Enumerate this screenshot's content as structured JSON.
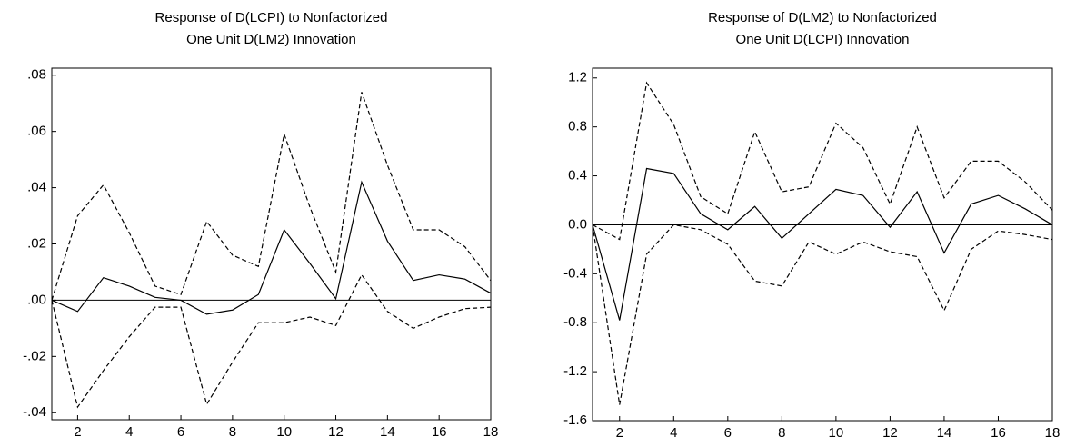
{
  "chart_data": [
    {
      "type": "line",
      "title": [
        "Response of D(LCPI) to Nonfactorized",
        "One Unit D(LM2) Innovation"
      ],
      "x": [
        1,
        2,
        3,
        4,
        5,
        6,
        7,
        8,
        9,
        10,
        11,
        12,
        13,
        14,
        15,
        16,
        17,
        18
      ],
      "xlim": [
        1,
        18
      ],
      "xticks": [
        2,
        4,
        6,
        8,
        10,
        12,
        14,
        16,
        18
      ],
      "ylim": [
        -0.0425,
        0.0825
      ],
      "yticks": [
        {
          "value": 0.08,
          "label": ".08"
        },
        {
          "value": 0.06,
          "label": ".06"
        },
        {
          "value": 0.04,
          "label": ".04"
        },
        {
          "value": 0.02,
          "label": ".02"
        },
        {
          "value": 0,
          "label": ".00"
        },
        {
          "value": -0.02,
          "label": "-.02"
        },
        {
          "value": -0.04,
          "label": "-.04"
        }
      ],
      "zero_line": true,
      "series": [
        {
          "color": "#000000",
          "dashed": false,
          "values": [
            0,
            -0.004,
            0.008,
            0.005,
            0.001,
            0.0,
            -0.005,
            -0.0035,
            0.002,
            0.025,
            0.013,
            0.0005,
            0.042,
            0.021,
            0.007,
            0.009,
            0.0075,
            0.0025
          ]
        },
        {
          "color": "#000000",
          "dashed": true,
          "values": [
            0,
            0.03,
            0.041,
            0.024,
            0.005,
            0.002,
            0.028,
            0.016,
            0.012,
            0.059,
            0.033,
            0.01,
            0.074,
            0.048,
            0.025,
            0.025,
            0.019,
            0.007
          ]
        },
        {
          "color": "#000000",
          "dashed": true,
          "values": [
            0,
            -0.038,
            -0.025,
            -0.013,
            -0.0025,
            -0.0025,
            -0.037,
            -0.022,
            -0.008,
            -0.008,
            -0.006,
            -0.009,
            0.009,
            -0.004,
            -0.01,
            -0.006,
            -0.003,
            -0.0025
          ]
        }
      ]
    },
    {
      "type": "line",
      "title": [
        "Response of D(LM2) to Nonfactorized",
        "One Unit D(LCPI) Innovation"
      ],
      "x": [
        1,
        2,
        3,
        4,
        5,
        6,
        7,
        8,
        9,
        10,
        11,
        12,
        13,
        14,
        15,
        16,
        17,
        18
      ],
      "xlim": [
        1,
        18
      ],
      "xticks": [
        2,
        4,
        6,
        8,
        10,
        12,
        14,
        16,
        18
      ],
      "ylim": [
        -1.6,
        1.28
      ],
      "yticks": [
        1.2,
        0.8,
        0.4,
        {
          "value": 0,
          "label": "0.0"
        },
        -0.4,
        -0.8,
        -1.2,
        -1.6
      ],
      "zero_line": true,
      "series": [
        {
          "color": "#000000",
          "dashed": false,
          "values": [
            0,
            -0.78,
            0.46,
            0.42,
            0.09,
            -0.04,
            0.15,
            -0.11,
            0.09,
            0.29,
            0.24,
            -0.02,
            0.27,
            -0.23,
            0.17,
            0.24,
            0.13,
            0.0
          ]
        },
        {
          "color": "#000000",
          "dashed": true,
          "values": [
            0,
            -0.12,
            1.16,
            0.82,
            0.23,
            0.09,
            0.76,
            0.27,
            0.31,
            0.83,
            0.63,
            0.17,
            0.8,
            0.22,
            0.52,
            0.52,
            0.35,
            0.12
          ]
        },
        {
          "color": "#000000",
          "dashed": true,
          "values": [
            0,
            -1.47,
            -0.24,
            0.0,
            -0.04,
            -0.16,
            -0.46,
            -0.5,
            -0.14,
            -0.24,
            -0.14,
            -0.22,
            -0.26,
            -0.7,
            -0.2,
            -0.05,
            -0.08,
            -0.12
          ]
        }
      ]
    }
  ]
}
